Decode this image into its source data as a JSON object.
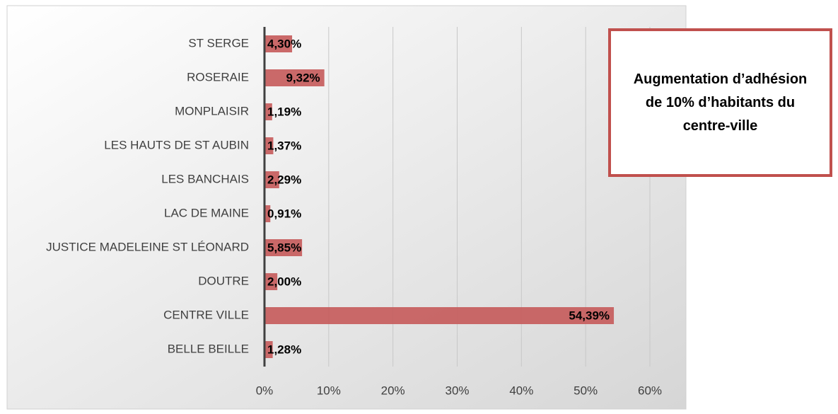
{
  "chart_data": {
    "type": "hbar",
    "categories": [
      "ST SERGE",
      "ROSERAIE",
      "MONPLAISIR",
      "LES HAUTS DE ST AUBIN",
      "LES BANCHAIS",
      "LAC DE MAINE",
      "JUSTICE MADELEINE ST LÉONARD",
      "DOUTRE",
      "CENTRE VILLE",
      "BELLE BEILLE"
    ],
    "values": [
      4.3,
      9.32,
      1.19,
      1.37,
      2.29,
      0.91,
      5.85,
      2.0,
      54.39,
      1.28
    ],
    "value_labels": [
      "4,30%",
      "9,32%",
      "1,19%",
      "1,37%",
      "2,29%",
      "0,91%",
      "5,85%",
      "2,00%",
      "54,39%",
      "1,28%"
    ],
    "color": "#c55a5a",
    "xlim": [
      0,
      60
    ],
    "xticks": [
      {
        "value": 0,
        "label": "0%"
      },
      {
        "value": 10,
        "label": "10%"
      },
      {
        "value": 20,
        "label": "20%"
      },
      {
        "value": 30,
        "label": "30%"
      },
      {
        "value": 40,
        "label": "40%"
      },
      {
        "value": 50,
        "label": "50%"
      },
      {
        "value": 60,
        "label": "60%"
      }
    ],
    "grid": true,
    "annotation": "Augmentation d’adhésion de 10% d’habitants du centre-ville"
  }
}
